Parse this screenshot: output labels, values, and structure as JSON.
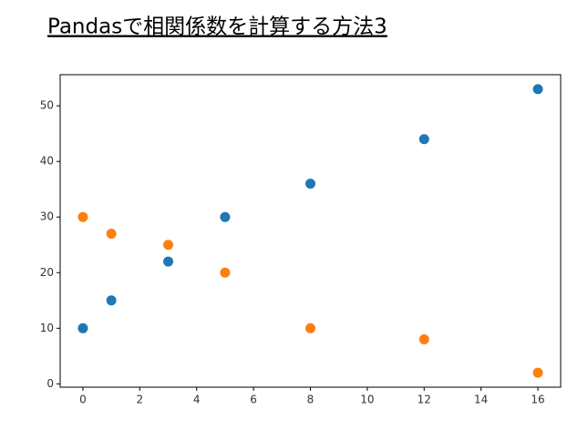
{
  "chart_data": {
    "type": "scatter",
    "title": "Pandasで相関係数を計算する方法3",
    "x": [
      0,
      1,
      3,
      5,
      8,
      12,
      16
    ],
    "series": [
      {
        "color": "#1f77b4",
        "values": [
          10,
          15,
          22,
          30,
          36,
          44,
          53
        ]
      },
      {
        "color": "#ff7f0e",
        "values": [
          30,
          27,
          25,
          20,
          10,
          8,
          2
        ]
      }
    ],
    "xlim": [
      -0.8,
      16.8
    ],
    "ylim": [
      -0.6,
      55.6
    ],
    "xticks": [
      0,
      2,
      4,
      6,
      8,
      10,
      12,
      14,
      16
    ],
    "yticks": [
      0,
      10,
      20,
      30,
      40,
      50
    ]
  }
}
